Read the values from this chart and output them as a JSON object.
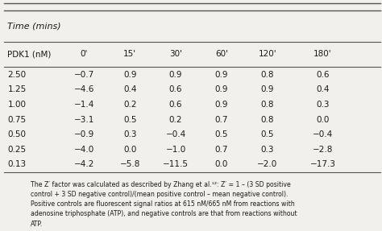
{
  "header_row": [
    "PDK1 (nM)",
    "0'",
    "15'",
    "30'",
    "60'",
    "120'",
    "180'"
  ],
  "rows": [
    [
      "2.50",
      "−0.7",
      "0.9",
      "0.9",
      "0.9",
      "0.8",
      "0.6"
    ],
    [
      "1.25",
      "−4.6",
      "0.4",
      "0.6",
      "0.9",
      "0.9",
      "0.4"
    ],
    [
      "1.00",
      "−1.4",
      "0.2",
      "0.6",
      "0.9",
      "0.8",
      "0.3"
    ],
    [
      "0.75",
      "−3.1",
      "0.5",
      "0.2",
      "0.7",
      "0.8",
      "0.0"
    ],
    [
      "0.50",
      "−0.9",
      "0.3",
      "−0.4",
      "0.5",
      "0.5",
      "−0.4"
    ],
    [
      "0.25",
      "−4.0",
      "0.0",
      "−1.0",
      "0.7",
      "0.3",
      "−2.8"
    ],
    [
      "0.13",
      "−4.2",
      "−5.8",
      "−11.5",
      "0.0",
      "−2.0",
      "−17.3"
    ]
  ],
  "time_label": "Time (mins)",
  "footnote_line1": "The Z′ factor was calculated as described by Zhang et al.¹²: Z′ = 1 – (3 SD positive",
  "footnote_line2": "control + 3 SD negative control)/(mean positive control – mean negative control).",
  "footnote_line3": "Positive controls are fluorescent signal ratios at 615 nM/665 nM from reactions with",
  "footnote_line4": "adenosine triphosphate (ATP), and negative controls are that from reactions without",
  "footnote_line5": "ATP.",
  "bg_color": "#f2f0ed",
  "text_color": "#1a1a1a",
  "line_color": "#555555",
  "figsize": [
    4.74,
    2.87
  ],
  "dpi": 100
}
